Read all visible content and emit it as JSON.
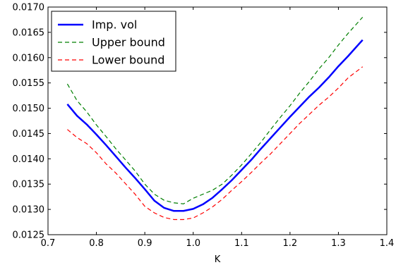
{
  "chart_data": {
    "type": "line",
    "title": "",
    "xlabel": "K",
    "ylabel": "",
    "xlim": [
      0.7,
      1.4
    ],
    "ylim": [
      0.0125,
      0.017
    ],
    "x_ticks": [
      "0.7",
      "0.8",
      "0.9",
      "1.0",
      "1.1",
      "1.2",
      "1.3",
      "1.4"
    ],
    "y_ticks": [
      "0.0125",
      "0.0130",
      "0.0135",
      "0.0140",
      "0.0145",
      "0.0150",
      "0.0155",
      "0.0160",
      "0.0165",
      "0.0170"
    ],
    "grid": false,
    "legend_position": "top-left",
    "series": [
      {
        "name": "Imp. vol",
        "color": "#0000ff",
        "style": "solid",
        "x": [
          0.74,
          0.76,
          0.78,
          0.8,
          0.82,
          0.84,
          0.86,
          0.88,
          0.9,
          0.92,
          0.94,
          0.96,
          0.98,
          1.0,
          1.02,
          1.04,
          1.06,
          1.08,
          1.1,
          1.12,
          1.14,
          1.16,
          1.18,
          1.2,
          1.22,
          1.24,
          1.26,
          1.28,
          1.3,
          1.32,
          1.35
        ],
        "y": [
          0.01508,
          0.01485,
          0.01468,
          0.01448,
          0.01427,
          0.01405,
          0.01383,
          0.01362,
          0.0134,
          0.01317,
          0.01303,
          0.01297,
          0.01297,
          0.01301,
          0.0131,
          0.01323,
          0.0134,
          0.01358,
          0.01378,
          0.01398,
          0.0142,
          0.01441,
          0.01462,
          0.01483,
          0.01503,
          0.01523,
          0.01541,
          0.01561,
          0.01583,
          0.01603,
          0.01635
        ]
      },
      {
        "name": "Upper bound",
        "color": "#007f00",
        "style": "dashed",
        "x": [
          0.74,
          0.76,
          0.78,
          0.8,
          0.82,
          0.84,
          0.86,
          0.88,
          0.9,
          0.92,
          0.94,
          0.96,
          0.98,
          1.0,
          1.02,
          1.04,
          1.06,
          1.08,
          1.1,
          1.12,
          1.14,
          1.16,
          1.18,
          1.2,
          1.22,
          1.24,
          1.26,
          1.28,
          1.3,
          1.32,
          1.35
        ],
        "y": [
          0.01548,
          0.01515,
          0.01493,
          0.01467,
          0.01444,
          0.0142,
          0.01398,
          0.01376,
          0.0135,
          0.0133,
          0.01318,
          0.01313,
          0.01311,
          0.01322,
          0.0133,
          0.01338,
          0.0135,
          0.01368,
          0.01388,
          0.0141,
          0.01433,
          0.01458,
          0.01482,
          0.01505,
          0.0153,
          0.01553,
          0.01578,
          0.016,
          0.01625,
          0.01648,
          0.0168
        ]
      },
      {
        "name": "Lower bound",
        "color": "#ff0000",
        "style": "dashed",
        "x": [
          0.74,
          0.76,
          0.78,
          0.8,
          0.82,
          0.84,
          0.86,
          0.88,
          0.9,
          0.92,
          0.94,
          0.96,
          0.98,
          1.0,
          1.02,
          1.04,
          1.06,
          1.08,
          1.1,
          1.12,
          1.14,
          1.16,
          1.18,
          1.2,
          1.22,
          1.24,
          1.26,
          1.28,
          1.3,
          1.32,
          1.35
        ],
        "y": [
          0.01458,
          0.01442,
          0.0143,
          0.01412,
          0.0139,
          0.01372,
          0.01351,
          0.0133,
          0.01306,
          0.01293,
          0.01284,
          0.0128,
          0.0128,
          0.01283,
          0.01293,
          0.01305,
          0.0132,
          0.01338,
          0.01355,
          0.01373,
          0.01392,
          0.0141,
          0.0143,
          0.0145,
          0.0147,
          0.01488,
          0.01506,
          0.01522,
          0.0154,
          0.0156,
          0.01582
        ]
      }
    ]
  }
}
